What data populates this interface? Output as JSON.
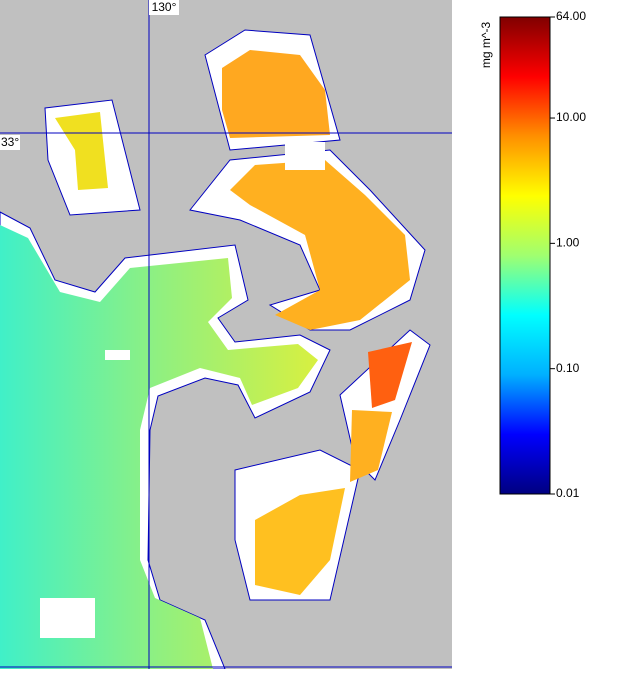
{
  "map": {
    "graticule": {
      "lon_label": "130°",
      "lat_label": "33°"
    },
    "colorbar": {
      "unit": "mg m^-3",
      "scale": "log",
      "lim": [
        0.01,
        64
      ],
      "ticks": [
        {
          "value": 64,
          "label": "64.00"
        },
        {
          "value": 10,
          "label": "10.00"
        },
        {
          "value": 1,
          "label": "1.00"
        },
        {
          "value": 0.1,
          "label": "0.10"
        },
        {
          "value": 0.01,
          "label": "0.01"
        }
      ],
      "colors": [
        "#000080",
        "#0000ff",
        "#00b0ff",
        "#00ffff",
        "#a0ff70",
        "#ffff00",
        "#ff9000",
        "#ff0000",
        "#800000"
      ]
    }
  }
}
